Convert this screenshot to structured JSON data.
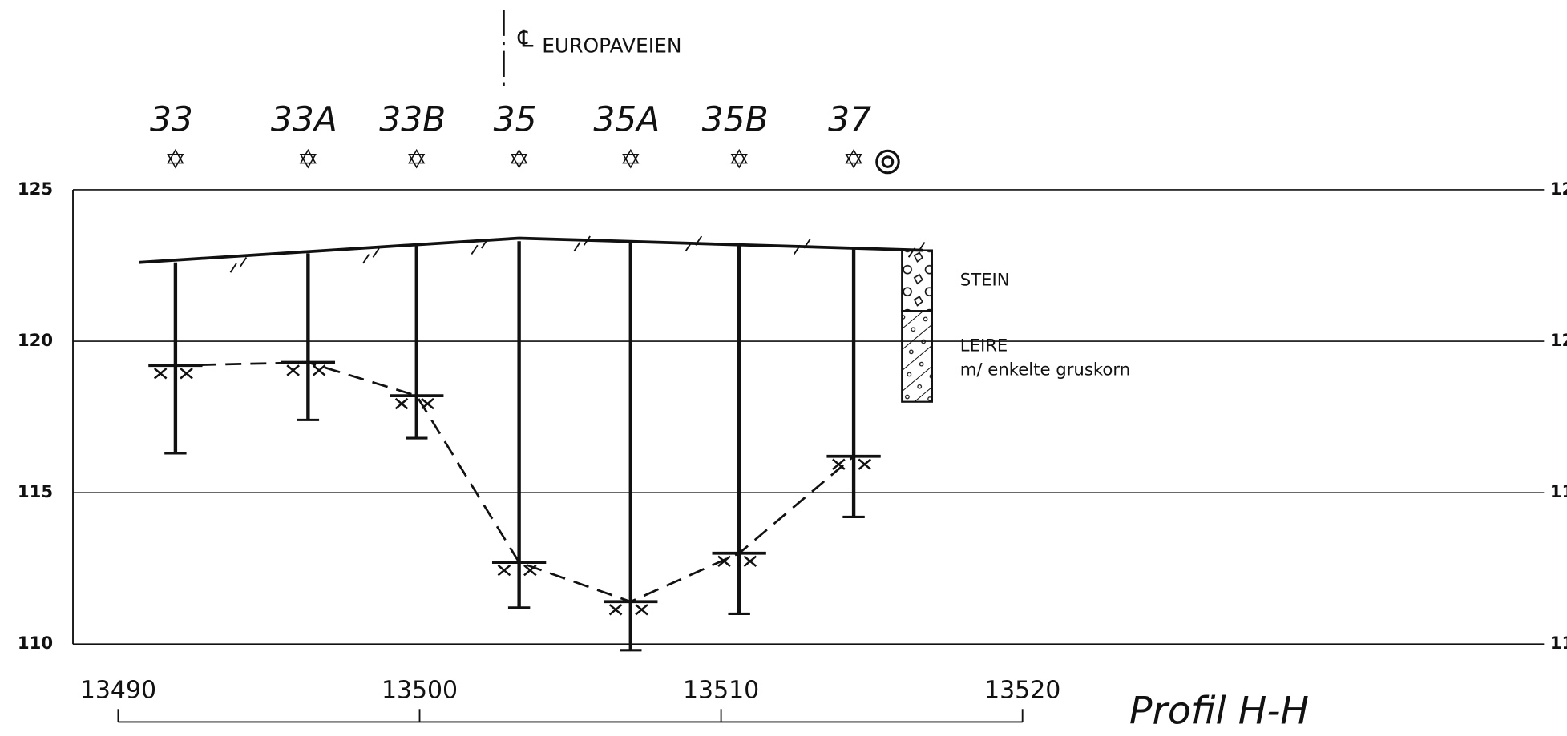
{
  "title": "Profil H-H",
  "centerline": {
    "symbol": "℄",
    "label": "EUROPAVEIEN",
    "x": 13502.8
  },
  "xlim": [
    13488.5,
    13537.3
  ],
  "ylim": [
    110,
    125
  ],
  "xticks": [
    13490,
    13500,
    13510,
    13520
  ],
  "yticks": [
    110,
    115,
    120,
    125
  ],
  "terrain": {
    "x": [
      13490.7,
      13503.3,
      13516.7
    ],
    "y": [
      122.6,
      123.4,
      123.0
    ]
  },
  "borings": [
    {
      "label": "33",
      "x": 13491.9,
      "top": 122.6,
      "bottom": 116.3,
      "rock": 119.2
    },
    {
      "label": "33A",
      "x": 13496.3,
      "top": 122.9,
      "bottom": 117.4,
      "rock": 119.3
    },
    {
      "label": "33B",
      "x": 13499.9,
      "top": 123.2,
      "bottom": 116.8,
      "rock": 118.2
    },
    {
      "label": "35",
      "x": 13503.3,
      "top": 123.3,
      "bottom": 111.2,
      "rock": 112.7
    },
    {
      "label": "35A",
      "x": 13507.0,
      "top": 123.3,
      "bottom": 109.8,
      "rock": 111.4
    },
    {
      "label": "35B",
      "x": 13510.6,
      "top": 123.2,
      "bottom": 111.0,
      "rock": 113.0
    },
    {
      "label": "37",
      "x": 13514.4,
      "top": 123.1,
      "bottom": 114.2,
      "rock": 116.2
    }
  ],
  "soil_column": {
    "x": [
      13516.0,
      13517.0
    ],
    "layers": [
      {
        "label": "STEIN",
        "top": 123.0,
        "bottom": 121.0
      },
      {
        "label": "LEIRE",
        "sublabel": "m/ enkelte gruskorn",
        "top": 121.0,
        "bottom": 118.0
      }
    ]
  }
}
